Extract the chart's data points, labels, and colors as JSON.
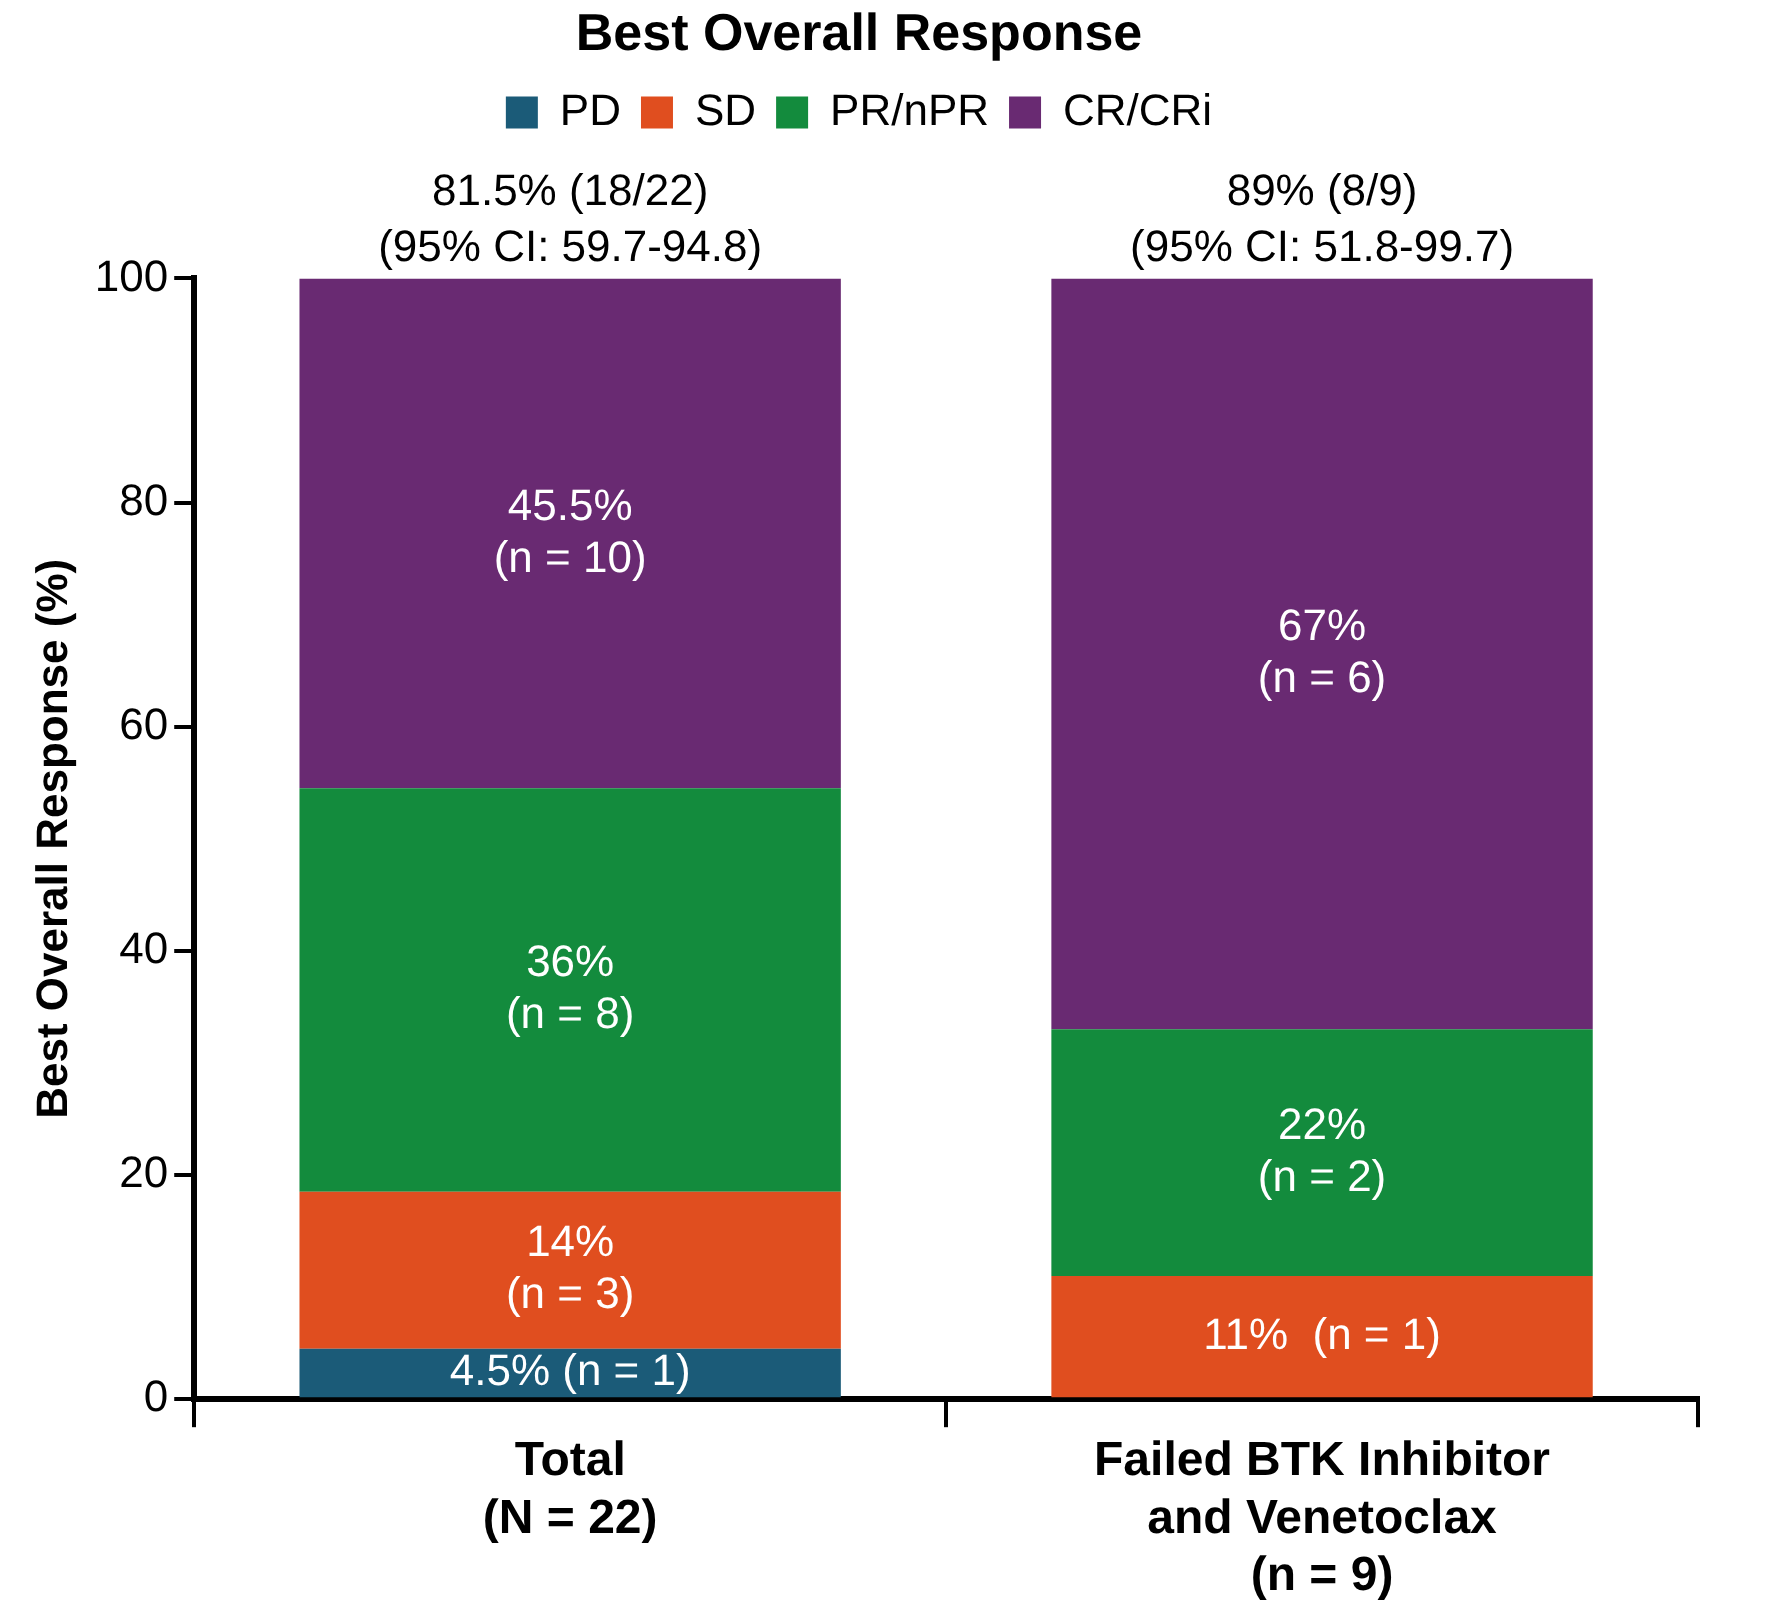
{
  "chart_data": {
    "type": "bar",
    "stacked": true,
    "title": "Best Overall Response",
    "ylabel": "Best Overall Response (%)",
    "categories": [
      "Total\n(N = 22)",
      "Failed BTK Inhibitor\nand Venetoclax\n(n = 9)"
    ],
    "ylim": [
      0,
      100
    ],
    "yticks": [
      0,
      20,
      40,
      60,
      80,
      100
    ],
    "grid": false,
    "legend": "top",
    "series": [
      {
        "name": "PD",
        "color": "#1b5b78",
        "values": [
          4.5,
          0
        ],
        "value_labels": [
          "4.5% (n = 1)",
          null
        ]
      },
      {
        "name": "SD",
        "color": "#e04e1f",
        "values": [
          14,
          11
        ],
        "value_labels": [
          "14%\n(n = 3)",
          "11%  (n = 1)"
        ]
      },
      {
        "name": "PR/nPR",
        "color": "#138b3d",
        "values": [
          36,
          22
        ],
        "value_labels": [
          "36%\n(n = 8)",
          "22%\n(n = 2)"
        ]
      },
      {
        "name": "CR/CRi",
        "color": "#692a72",
        "values": [
          45.5,
          67
        ],
        "value_labels": [
          "45.5%\n(n = 10)",
          "67%\n(n = 6)"
        ]
      }
    ],
    "annotations": [
      {
        "text": "81.5% (18/22)\n(95% CI: 59.7-94.8)",
        "x": "Total\n(N = 22)",
        "y": 100
      },
      {
        "text": "89% (8/9)\n(95% CI: 51.8-99.7)",
        "x": "Failed BTK Inhibitor\nand Venetoclax\n(n = 9)",
        "y": 100
      }
    ]
  }
}
